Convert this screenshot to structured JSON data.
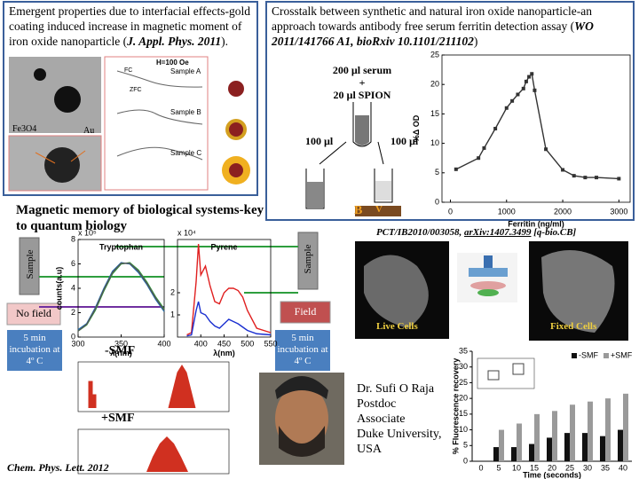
{
  "box1": {
    "text": "Emergent properties due to interfacial effects-gold coating induced increase in magnetic moment of iron oxide nanoparticle (",
    "citation": "J. Appl. Phys. 2011",
    "closing": ")."
  },
  "magnetization": {
    "oxide": "Fe3O4",
    "gold": "Au",
    "field": "H=100 Oe",
    "samples": [
      "Sample A",
      "Sample B",
      "Sample C"
    ],
    "fc": "FC",
    "zfc": "ZFC"
  },
  "box2": {
    "text": "Crosstalk between synthetic and natural iron oxide nanoparticle-an approach towards antibody free serum ferritin detection assay (",
    "citation": "WO 2011/141766 A1, bioRxiv 10.1101/211102",
    "closing": ")"
  },
  "assay": {
    "serum": "200 µl serum",
    "plus": "+",
    "spion": "20 µl SPION",
    "left_volume": "100 µl",
    "right_volume": "100 µl",
    "b": "B",
    "v": "V"
  },
  "heading": "Magnetic memory of biological systems-key to quantum biology",
  "spectra_panel": {
    "sample_left": "Sample",
    "no_field": "No field",
    "incubation_left": "5 min incubation at 4º C",
    "sample_right": "Sample",
    "field": "Field",
    "incubation_right": "5 min incubation at 4º C",
    "minus_smf": "-SMF",
    "plus_smf": "+SMF",
    "citation": "Chem. Phys. Lett. 2012"
  },
  "cells": {
    "reference": "PCT/IB2010/003058, ",
    "arxiv": "arXiv:1407.3499",
    "category": " [q-bio.CB]",
    "live": "Live Cells",
    "fixed": "Fixed Cells"
  },
  "person": {
    "name": "Dr. Sufi O Raja",
    "lines": [
      "Postdoc",
      "Associate",
      "Duke University,",
      "USA"
    ]
  },
  "charts": {
    "ferritin": {
      "type": "line",
      "x_label": "Ferritin (ng/ml)",
      "y_label": "%Δ OD",
      "markers": true,
      "x": [
        100,
        500,
        600,
        800,
        1000,
        1100,
        1200,
        1300,
        1350,
        1400,
        1450,
        1500,
        1700,
        2000,
        2200,
        2400,
        2600,
        3000
      ],
      "series": [
        {
          "color": "#333333",
          "values": [
            5.6,
            7.5,
            9.2,
            12.5,
            16,
            17.2,
            18.3,
            19.3,
            20.5,
            21.3,
            21.8,
            19,
            9,
            5.5,
            4.5,
            4.2,
            4.2,
            4
          ]
        }
      ],
      "xlim": [
        -150,
        3200
      ],
      "ylim": [
        0,
        25
      ],
      "xticks": [
        0,
        1000,
        2000,
        3000
      ],
      "yticks": [
        0,
        5,
        10,
        15,
        20,
        25
      ]
    },
    "tryptophan": {
      "type": "line",
      "title": "Tryptophan",
      "x_label": "λ(nm)",
      "y_label": "counts(a.u)",
      "multiplier": "x 10⁵",
      "x": [
        300,
        310,
        320,
        330,
        340,
        350,
        360,
        370,
        380,
        390,
        400
      ],
      "series": [
        {
          "color": "#2e9e3e",
          "values": [
            0.5,
            1,
            2.2,
            3.8,
            5.2,
            6,
            6.1,
            5.5,
            4.5,
            3.3,
            2.3
          ]
        },
        {
          "color": "#1c6fb0",
          "values": [
            0.6,
            1.1,
            2.4,
            4,
            5.4,
            6.1,
            6,
            5.3,
            4.3,
            3.1,
            2.1
          ]
        },
        {
          "color": "#555555",
          "values": [
            0.5,
            1.05,
            2.3,
            3.9,
            5.3,
            6.05,
            6.05,
            5.4,
            4.4,
            3.2,
            2.2
          ]
        }
      ],
      "xlim": [
        300,
        400
      ],
      "ylim": [
        0,
        8
      ],
      "xticks": [
        300,
        350,
        400
      ],
      "yticks": [
        0,
        2,
        4,
        6,
        8
      ]
    },
    "pyrene": {
      "type": "line",
      "title": "Pyrene",
      "x_label": "λ(nm)",
      "multiplier": "x 10⁴",
      "x": [
        370,
        380,
        390,
        395,
        400,
        410,
        420,
        430,
        440,
        450,
        460,
        470,
        480,
        490,
        500,
        520,
        550
      ],
      "series": [
        {
          "color": "#e02020",
          "values": [
            0.1,
            0.2,
            2.5,
            4.2,
            2.8,
            3.2,
            2.3,
            1.6,
            1.5,
            2,
            2.2,
            2.2,
            2.1,
            1.8,
            1.2,
            0.4,
            0.2
          ]
        },
        {
          "color": "#1a2fd0",
          "values": [
            0.05,
            0.1,
            1.2,
            1.6,
            1.1,
            1,
            0.7,
            0.5,
            0.4,
            0.6,
            0.8,
            0.7,
            0.6,
            0.45,
            0.3,
            0.15,
            0.1
          ]
        }
      ],
      "xlim": [
        350,
        550
      ],
      "ylim": [
        0,
        4.4
      ],
      "xticks": [
        400,
        450,
        500,
        550
      ],
      "yticks": [
        1,
        2
      ]
    },
    "recovery": {
      "type": "bar",
      "x_label": "Time (seconds)",
      "y_label": "% Fluorescence recovery",
      "categories": [
        "0",
        "5",
        "10",
        "15",
        "20",
        "25",
        "30",
        "35",
        "40"
      ],
      "series": [
        {
          "name": "-SMF",
          "color": "#111111",
          "values": [
            0,
            4.5,
            4.5,
            5.5,
            7.5,
            9,
            9,
            8,
            10
          ]
        },
        {
          "name": "+SMF",
          "color": "#9a9a9a",
          "values": [
            0,
            10,
            12,
            15,
            16,
            18,
            19,
            20,
            21.5
          ]
        }
      ],
      "ylim": [
        0,
        35
      ],
      "yticks": [
        0,
        5,
        10,
        15,
        20,
        25,
        30,
        35
      ]
    }
  }
}
